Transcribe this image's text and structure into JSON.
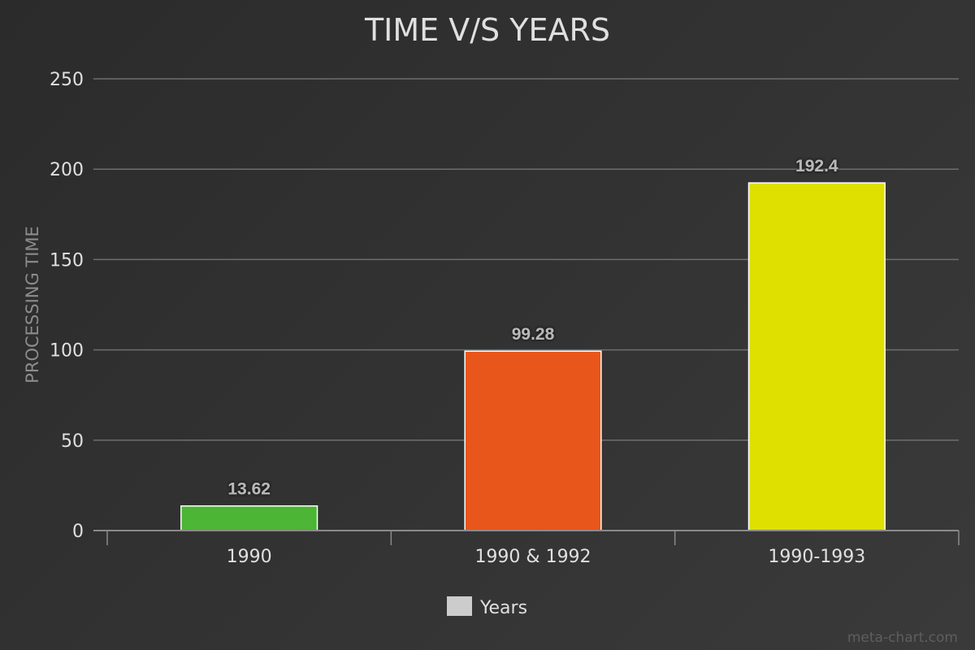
{
  "chart_data": {
    "type": "bar",
    "title": "TIME V/S YEARS",
    "xlabel": "",
    "ylabel": "PROCESSING TIME",
    "categories": [
      "1990",
      "1990 & 1992",
      "1990-1993"
    ],
    "series": [
      {
        "name": "Years",
        "values": [
          13.62,
          99.28,
          192.4
        ],
        "value_labels": [
          "13.62",
          "99.28",
          "192.4"
        ],
        "colors": [
          "#4db535",
          "#e9561b",
          "#dfe000"
        ]
      }
    ],
    "ylim": [
      0,
      250
    ],
    "yticks": [
      0,
      50,
      100,
      150,
      200,
      250
    ],
    "grid": true,
    "legend_position": "bottom",
    "legend_swatch_color": "#cccccc"
  },
  "credit": "meta-chart.com",
  "colors": {
    "grid": "#6e6e6e",
    "axis": "#8a8a8a",
    "bar_border": "#ffffff"
  }
}
